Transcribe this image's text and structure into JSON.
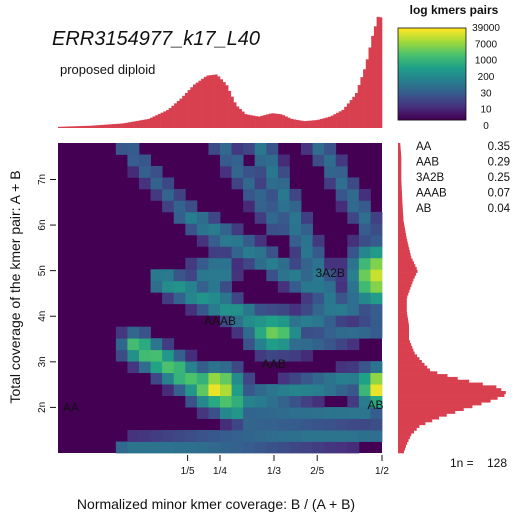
{
  "chart_data": {
    "type": "heatmap",
    "title": "ERR3154977_k17_L40",
    "subtitle": "proposed diploid",
    "xlabel": "Normalized minor kmer coverage: B / (A + B)",
    "ylabel": "Total coverage of the kmer pair: A + B",
    "x_ticks": [
      {
        "value": 0.2,
        "label": "1/5"
      },
      {
        "value": 0.25,
        "label": "1/4"
      },
      {
        "value": 0.3333,
        "label": "1/3"
      },
      {
        "value": 0.4,
        "label": "2/5"
      },
      {
        "value": 0.5,
        "label": "1/2"
      }
    ],
    "xlim": [
      0.0,
      0.5
    ],
    "y_ticks": [
      {
        "value": 2,
        "label": "2n"
      },
      {
        "value": 3,
        "label": "3n"
      },
      {
        "value": 4,
        "label": "4n"
      },
      {
        "value": 5,
        "label": "5n"
      },
      {
        "value": 6,
        "label": "6n"
      },
      {
        "value": 7,
        "label": "7n"
      }
    ],
    "ylim": [
      1.0,
      7.8
    ],
    "coverage_unit": 128,
    "n_label": "1n =",
    "n_value": "128",
    "peaks": [
      {
        "label": "AA",
        "x": 0.02,
        "y": 2.0
      },
      {
        "label": "AB",
        "x": 0.49,
        "y": 2.05
      },
      {
        "label": "AAB",
        "x": 0.333,
        "y": 2.95
      },
      {
        "label": "AAAB",
        "x": 0.25,
        "y": 3.9
      },
      {
        "label": "3A2B",
        "x": 0.42,
        "y": 4.95
      }
    ],
    "hotspots": [
      {
        "x": 0.245,
        "y": 2.45,
        "w": 0.042,
        "h": 0.45,
        "v": 1.0
      },
      {
        "x": 0.495,
        "y": 2.45,
        "w": 0.035,
        "h": 0.45,
        "v": 1.0
      },
      {
        "x": 0.335,
        "y": 3.65,
        "w": 0.045,
        "h": 0.45,
        "v": 0.78
      },
      {
        "x": 0.49,
        "y": 4.9,
        "w": 0.04,
        "h": 0.7,
        "v": 0.92
      },
      {
        "x": 0.25,
        "y": 5.0,
        "w": 0.025,
        "h": 0.45,
        "v": 0.48
      }
    ],
    "bands": [
      {
        "from": [
          0.105,
          1.1
        ],
        "to": [
          0.5,
          1.45
        ],
        "width": 0.02,
        "v": 0.38
      },
      {
        "from": [
          0.12,
          3.35
        ],
        "to": [
          0.27,
          2.05
        ],
        "width": 0.025,
        "v": 0.72
      },
      {
        "from": [
          0.16,
          4.8
        ],
        "to": [
          0.34,
          3.7
        ],
        "width": 0.022,
        "v": 0.52
      },
      {
        "from": [
          0.2,
          6.2
        ],
        "to": [
          0.4,
          4.6
        ],
        "width": 0.022,
        "v": 0.42
      },
      {
        "from": [
          0.34,
          3.65
        ],
        "to": [
          0.46,
          4.3
        ],
        "width": 0.022,
        "v": 0.42
      },
      {
        "from": [
          0.36,
          3.35
        ],
        "to": [
          0.5,
          3.8
        ],
        "width": 0.02,
        "v": 0.35
      },
      {
        "from": [
          0.27,
          2.1
        ],
        "to": [
          0.45,
          2.6
        ],
        "width": 0.022,
        "v": 0.45
      },
      {
        "from": [
          0.29,
          1.75
        ],
        "to": [
          0.48,
          1.85
        ],
        "width": 0.02,
        "v": 0.4
      },
      {
        "from": [
          0.1,
          7.8
        ],
        "to": [
          0.2,
          6.2
        ],
        "width": 0.018,
        "v": 0.32
      },
      {
        "from": [
          0.25,
          7.8
        ],
        "to": [
          0.34,
          6.0
        ],
        "width": 0.02,
        "v": 0.34
      },
      {
        "from": [
          0.31,
          7.8
        ],
        "to": [
          0.42,
          4.4
        ],
        "width": 0.022,
        "v": 0.4
      },
      {
        "from": [
          0.4,
          7.8
        ],
        "to": [
          0.48,
          6.0
        ],
        "width": 0.02,
        "v": 0.36
      },
      {
        "from": [
          0.22,
          5.0
        ],
        "to": [
          0.26,
          4.3
        ],
        "width": 0.02,
        "v": 0.4
      }
    ],
    "top_histogram": [
      {
        "x": 0.0,
        "v": 0.01
      },
      {
        "x": 0.05,
        "v": 0.02
      },
      {
        "x": 0.1,
        "v": 0.04
      },
      {
        "x": 0.14,
        "v": 0.08
      },
      {
        "x": 0.17,
        "v": 0.16
      },
      {
        "x": 0.19,
        "v": 0.26
      },
      {
        "x": 0.21,
        "v": 0.38
      },
      {
        "x": 0.23,
        "v": 0.46
      },
      {
        "x": 0.245,
        "v": 0.47
      },
      {
        "x": 0.26,
        "v": 0.38
      },
      {
        "x": 0.275,
        "v": 0.2
      },
      {
        "x": 0.29,
        "v": 0.12
      },
      {
        "x": 0.31,
        "v": 0.1
      },
      {
        "x": 0.33,
        "v": 0.13
      },
      {
        "x": 0.345,
        "v": 0.12
      },
      {
        "x": 0.36,
        "v": 0.08
      },
      {
        "x": 0.38,
        "v": 0.06
      },
      {
        "x": 0.4,
        "v": 0.07
      },
      {
        "x": 0.42,
        "v": 0.1
      },
      {
        "x": 0.44,
        "v": 0.16
      },
      {
        "x": 0.46,
        "v": 0.3
      },
      {
        "x": 0.475,
        "v": 0.55
      },
      {
        "x": 0.485,
        "v": 0.8
      },
      {
        "x": 0.495,
        "v": 1.0
      },
      {
        "x": 0.5,
        "v": 0.95
      }
    ],
    "right_histogram": [
      {
        "y": 1.0,
        "v": 0.05
      },
      {
        "y": 1.2,
        "v": 0.08
      },
      {
        "y": 1.4,
        "v": 0.12
      },
      {
        "y": 1.6,
        "v": 0.2
      },
      {
        "y": 1.8,
        "v": 0.4
      },
      {
        "y": 2.0,
        "v": 0.65
      },
      {
        "y": 2.15,
        "v": 0.85
      },
      {
        "y": 2.3,
        "v": 1.0
      },
      {
        "y": 2.45,
        "v": 0.9
      },
      {
        "y": 2.6,
        "v": 0.6
      },
      {
        "y": 2.8,
        "v": 0.3
      },
      {
        "y": 3.0,
        "v": 0.22
      },
      {
        "y": 3.2,
        "v": 0.15
      },
      {
        "y": 3.5,
        "v": 0.1
      },
      {
        "y": 3.8,
        "v": 0.1
      },
      {
        "y": 4.1,
        "v": 0.08
      },
      {
        "y": 4.4,
        "v": 0.08
      },
      {
        "y": 4.8,
        "v": 0.14
      },
      {
        "y": 5.0,
        "v": 0.18
      },
      {
        "y": 5.3,
        "v": 0.12
      },
      {
        "y": 5.7,
        "v": 0.08
      },
      {
        "y": 6.1,
        "v": 0.05
      },
      {
        "y": 6.5,
        "v": 0.04
      },
      {
        "y": 7.0,
        "v": 0.03
      },
      {
        "y": 7.5,
        "v": 0.03
      },
      {
        "y": 7.8,
        "v": 0.02
      }
    ],
    "legend": {
      "title": "log kmers pairs",
      "ticks": [
        "39000",
        "7000",
        "1000",
        "200",
        "30",
        "10",
        "0"
      ]
    },
    "proportions": [
      {
        "label": "AA",
        "value": "0.35"
      },
      {
        "label": "AAB",
        "value": "0.29"
      },
      {
        "label": "3A2B",
        "value": "0.25"
      },
      {
        "label": "AAAB",
        "value": "0.07"
      },
      {
        "label": "AB",
        "value": "0.04"
      }
    ],
    "colors": {
      "background": "#440154",
      "histogram": "#d9404f",
      "viridis": [
        "#440154",
        "#46327e",
        "#365c8d",
        "#277f8e",
        "#1fa187",
        "#4ac16d",
        "#a0da39",
        "#fde725"
      ]
    }
  }
}
